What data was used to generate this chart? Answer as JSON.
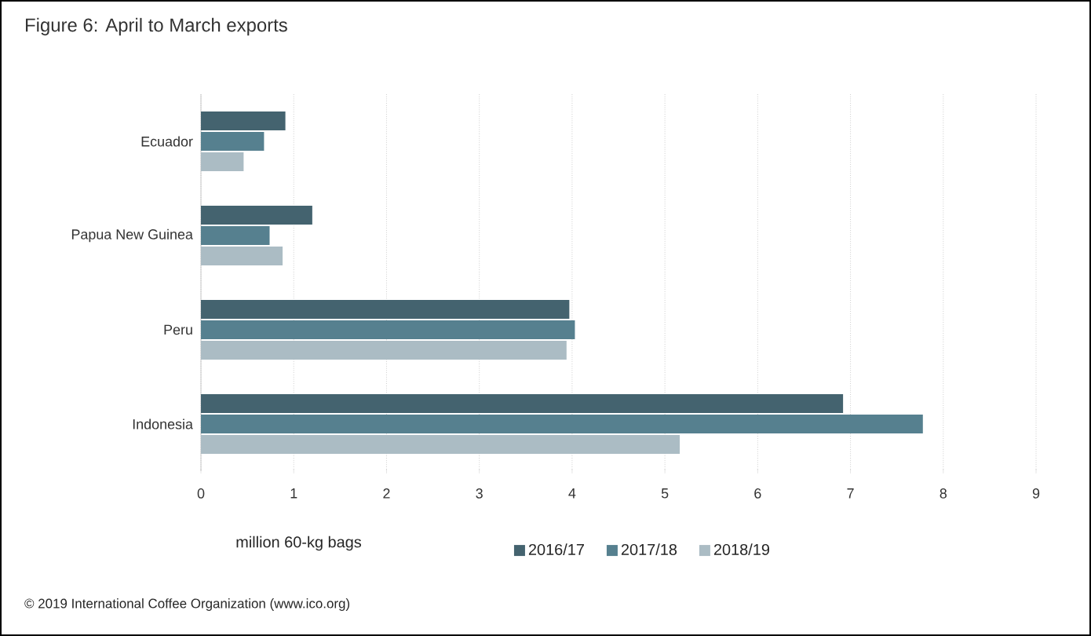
{
  "chart_data": {
    "type": "bar",
    "orientation": "horizontal",
    "title": "Figure 6: April to March exports",
    "xlabel": "million 60-kg bags",
    "categories": [
      "Ecuador",
      "Papua New Guinea",
      "Peru",
      "Indonesia"
    ],
    "series": [
      {
        "name": "2016/17",
        "color": "#44636f",
        "values": [
          0.91,
          1.2,
          3.97,
          6.92
        ]
      },
      {
        "name": "2017/18",
        "color": "#56808f",
        "values": [
          0.68,
          0.74,
          4.03,
          7.78
        ]
      },
      {
        "name": "2018/19",
        "color": "#abbcc4",
        "values": [
          0.46,
          0.88,
          3.94,
          5.16
        ]
      }
    ],
    "xlim": [
      0,
      9
    ],
    "xticks": [
      0,
      1,
      2,
      3,
      4,
      5,
      6,
      7,
      8,
      9
    ],
    "grid": "x",
    "legend": "bottom",
    "annotations": [
      "© 2019 International Coffee Organization (www.ico.org)"
    ]
  }
}
